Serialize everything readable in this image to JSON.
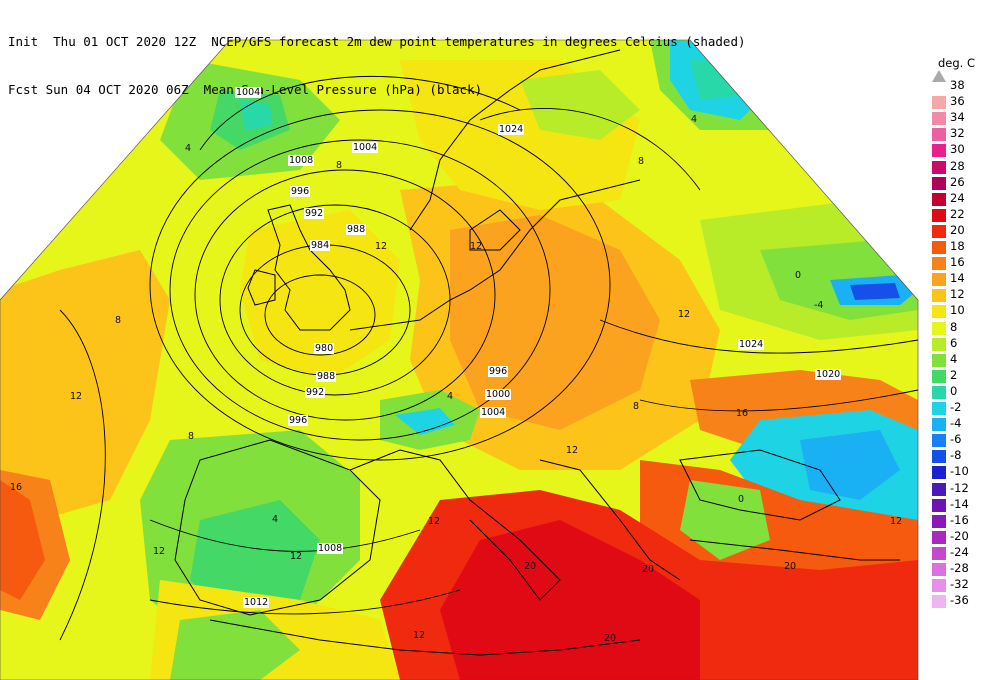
{
  "header": {
    "line1": "Init  Thu 01 OCT 2020 12Z  NCEP/GFS forecast 2m dew point temperatures in degrees Celcius (shaded)",
    "line2": "Fcst Sun 04 OCT 2020 06Z  Mean Sea-Level Pressure (hPa) (black)"
  },
  "colorbar": {
    "unit_label": "deg. C",
    "levels": [
      {
        "label": "38",
        "color": "#f4c9c9"
      },
      {
        "label": "36",
        "color": "#f4a8a8"
      },
      {
        "label": "34",
        "color": "#f08aa8"
      },
      {
        "label": "32",
        "color": "#ec5fa0"
      },
      {
        "label": "30",
        "color": "#e8208c"
      },
      {
        "label": "28",
        "color": "#cc0a6e"
      },
      {
        "label": "26",
        "color": "#b0005a"
      },
      {
        "label": "24",
        "color": "#c40030"
      },
      {
        "label": "22",
        "color": "#e00a14"
      },
      {
        "label": "20",
        "color": "#f02a0e"
      },
      {
        "label": "18",
        "color": "#f55a0e"
      },
      {
        "label": "16",
        "color": "#f8821a"
      },
      {
        "label": "14",
        "color": "#fba21e"
      },
      {
        "label": "12",
        "color": "#fcc418"
      },
      {
        "label": "10",
        "color": "#f5e612"
      },
      {
        "label": "8",
        "color": "#e6f51a"
      },
      {
        "label": "6",
        "color": "#b8ec28"
      },
      {
        "label": "4",
        "color": "#82e03c"
      },
      {
        "label": "2",
        "color": "#44d866"
      },
      {
        "label": "0",
        "color": "#28d8a8"
      },
      {
        "label": "-2",
        "color": "#1ed4e4"
      },
      {
        "label": "-4",
        "color": "#1ab0f4"
      },
      {
        "label": "-6",
        "color": "#1680f4"
      },
      {
        "label": "-8",
        "color": "#1650e8"
      },
      {
        "label": "-10",
        "color": "#1a22d0"
      },
      {
        "label": "-12",
        "color": "#4a1ab8"
      },
      {
        "label": "-14",
        "color": "#6e14b0"
      },
      {
        "label": "-16",
        "color": "#8a1ab8"
      },
      {
        "label": "-20",
        "color": "#a828c0"
      },
      {
        "label": "-24",
        "color": "#c648cc"
      },
      {
        "label": "-28",
        "color": "#dc70dc"
      },
      {
        "label": "-32",
        "color": "#e890e8"
      },
      {
        "label": "-36",
        "color": "#f0b4f0"
      }
    ]
  },
  "isobar_labels": [
    "1004",
    "1004",
    "1008",
    "1024",
    "996",
    "992",
    "984",
    "988",
    "980",
    "988",
    "992",
    "996",
    "996",
    "1000",
    "1004",
    "1024",
    "1020",
    "1008",
    "1012"
  ],
  "dewpoint_labels": [
    "4",
    "8",
    "8",
    "4",
    "12",
    "12",
    "8",
    "16",
    "12",
    "8",
    "4",
    "12",
    "12",
    "0",
    "-4",
    "12",
    "16",
    "8",
    "12",
    "20",
    "20",
    "20",
    "0",
    "12",
    "12",
    "20",
    "4",
    "12"
  ]
}
